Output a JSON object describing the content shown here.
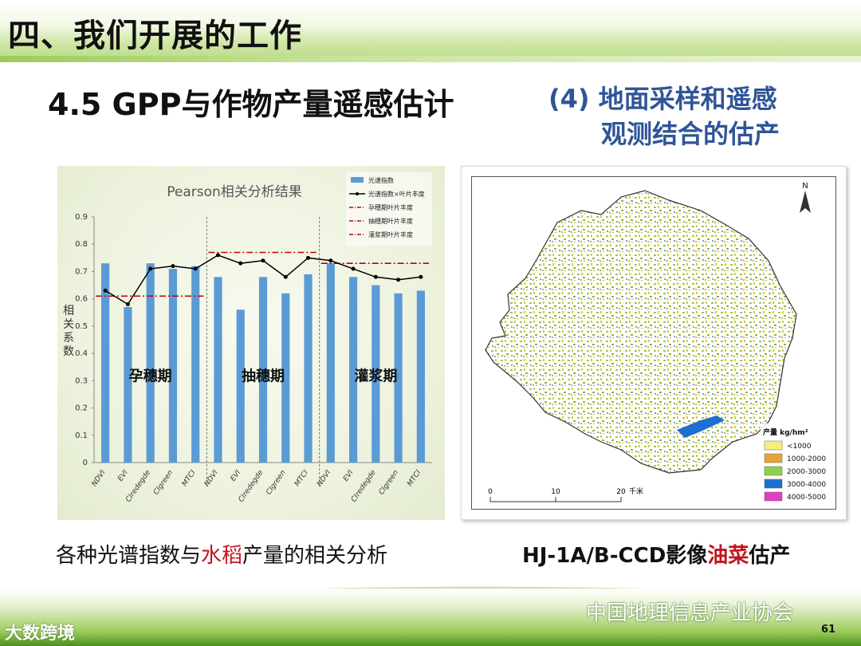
{
  "header": {
    "section_title": "四、我们开展的工作",
    "sub_title": "4.5 GPP与作物产量遥感估计",
    "right_title_line1": "(4) 地面采样和遥感",
    "right_title_line2": "观测结合的估产"
  },
  "chart_data": {
    "type": "bar",
    "title": "Pearson相关分析结果",
    "ylabel": "相关系数",
    "ylim": [
      0,
      0.9
    ],
    "yticks": [
      "0",
      "0.1",
      "0.2",
      "0.3",
      "0.4",
      "0.5",
      "0.6",
      "0.7",
      "0.8",
      "0.9"
    ],
    "categories": [
      "NDVI",
      "EVI",
      "CIredegde",
      "CIgreen",
      "MTCI",
      "NDVI",
      "EVI",
      "CIredegde",
      "CIgreen",
      "MTCI",
      "NDVI",
      "EVI",
      "CIredegde",
      "CIgreen",
      "MTCI"
    ],
    "groups": [
      "孕穗期",
      "抽穗期",
      "灌浆期"
    ],
    "series": [
      {
        "name": "光谱指数",
        "type": "bar",
        "color": "#5b9bd5",
        "values": [
          0.73,
          0.57,
          0.73,
          0.71,
          0.72,
          0.68,
          0.56,
          0.68,
          0.62,
          0.69,
          0.73,
          0.68,
          0.65,
          0.62,
          0.63
        ]
      },
      {
        "name": "光谱指数×叶片丰度",
        "type": "line",
        "color": "#000000",
        "values": [
          0.63,
          0.58,
          0.71,
          0.72,
          0.71,
          0.76,
          0.73,
          0.74,
          0.68,
          0.75,
          0.74,
          0.71,
          0.68,
          0.67,
          0.68
        ]
      },
      {
        "name": "孕穗期叶片丰度",
        "type": "hline",
        "color": "#c00000",
        "value": 0.61,
        "range": [
          0,
          4
        ]
      },
      {
        "name": "抽穗期叶片丰度",
        "type": "hline",
        "color": "#c00000",
        "value": 0.77,
        "range": [
          5,
          9
        ]
      },
      {
        "name": "灌浆期叶片丰度",
        "type": "hline",
        "color": "#c00000",
        "value": 0.73,
        "range": [
          10,
          14
        ]
      }
    ],
    "legend_position": "top-right"
  },
  "map": {
    "north": "N",
    "legend_title": "产量 kg/hm²",
    "legend": [
      {
        "label": "<1000",
        "color": "#f5f07a"
      },
      {
        "label": "1000-2000",
        "color": "#e8a23a"
      },
      {
        "label": "2000-3000",
        "color": "#8fd14f"
      },
      {
        "label": "3000-4000",
        "color": "#1f6fd1"
      },
      {
        "label": "4000-5000",
        "color": "#e040c0"
      }
    ],
    "scale_labels": [
      "0",
      "10",
      "20",
      "千米"
    ]
  },
  "captions": {
    "left_a": "各种光谱指数与",
    "left_red": "水稻",
    "left_b": "产量的相关分析",
    "right_a": "HJ-1A/B-CCD影像",
    "right_red": "油菜",
    "right_b": "估产"
  },
  "footer": {
    "watermark": "中国地理信息产业协会",
    "logo": "大数跨境",
    "page_number": "61"
  }
}
